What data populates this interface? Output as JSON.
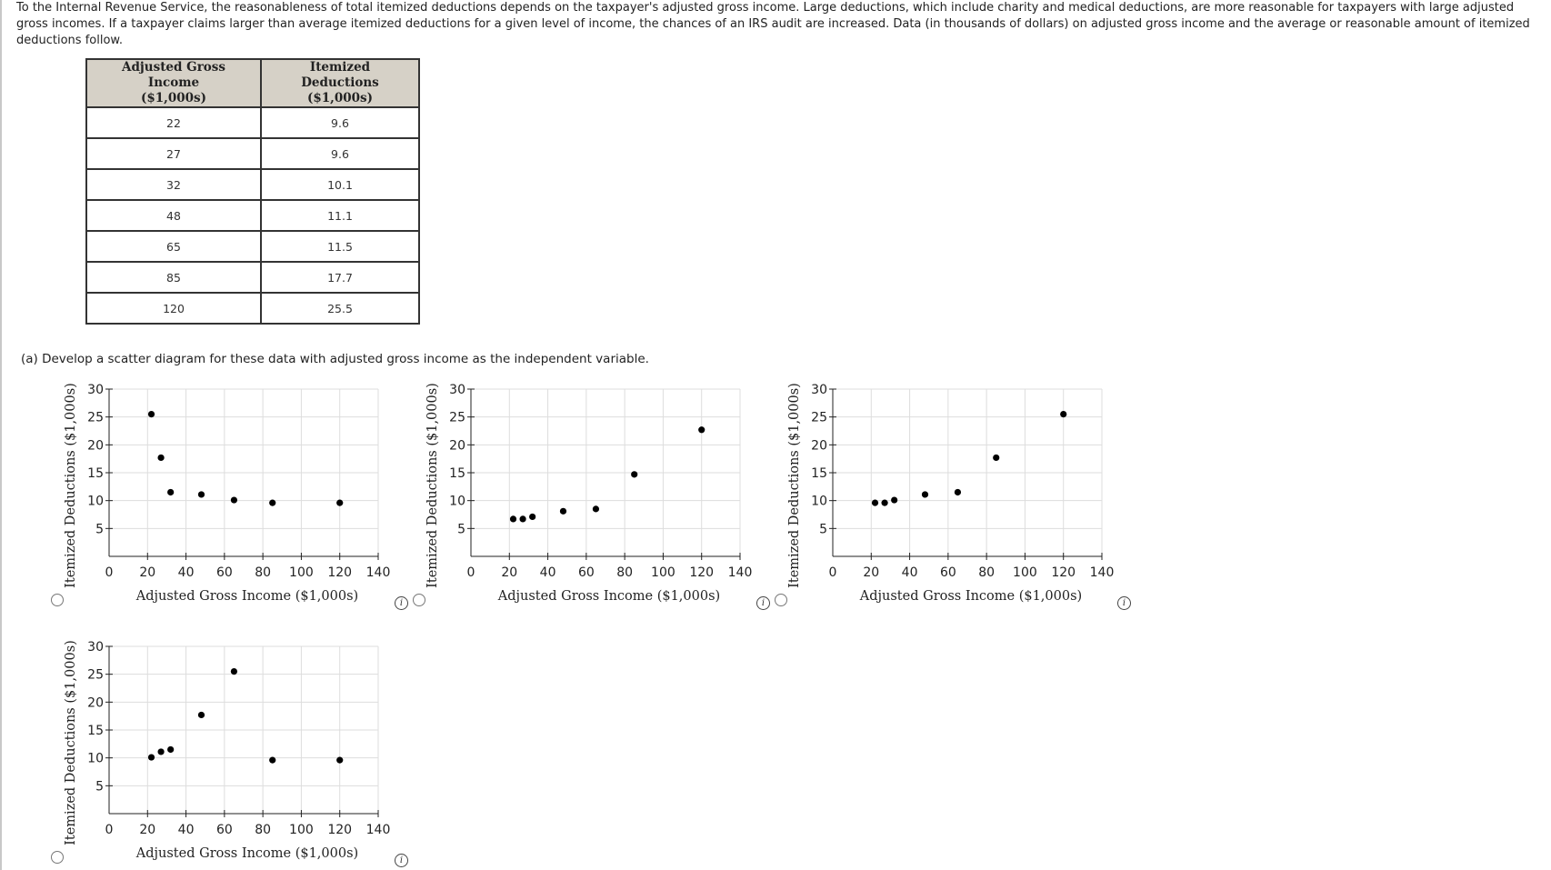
{
  "intro_text": "To the Internal Revenue Service, the reasonableness of total itemized deductions depends on the taxpayer's adjusted gross income. Large deductions, which include charity and medical deductions, are more reasonable for taxpayers with large adjusted gross incomes. If a taxpayer claims larger than average itemized deductions for a given level of income, the chances of an IRS audit are increased. Data (in thousands of dollars) on adjusted gross income and the average or reasonable amount of itemized deductions follow.",
  "table": {
    "headers": [
      {
        "line1": "Adjusted Gross Income",
        "line2": "($1,000s)"
      },
      {
        "line1": "Itemized Deductions",
        "line2": "($1,000s)"
      }
    ],
    "rows": [
      [
        "22",
        "9.6"
      ],
      [
        "27",
        "9.6"
      ],
      [
        "32",
        "10.1"
      ],
      [
        "48",
        "11.1"
      ],
      [
        "65",
        "11.5"
      ],
      [
        "85",
        "17.7"
      ],
      [
        "120",
        "25.5"
      ]
    ]
  },
  "question_a": "(a)  Develop a scatter diagram for these data with adjusted gross income as the independent variable.",
  "info_glyph": "i",
  "icons": {
    "option_radio": "radio-button",
    "info": "info-icon"
  },
  "chart_data": [
    {
      "type": "scatter",
      "xlabel": "Adjusted Gross Income ($1,000s)",
      "ylabel": "Itemized Deductions ($1,000s)",
      "xlim": [
        0,
        140
      ],
      "ylim": [
        0,
        30
      ],
      "xticks": [
        "0",
        "20",
        "40",
        "60",
        "80",
        "100",
        "120",
        "140"
      ],
      "yticks": [
        "5",
        "10",
        "15",
        "20",
        "25",
        "30"
      ],
      "grid": true,
      "points": [
        [
          22,
          25.5
        ],
        [
          27,
          17.7
        ],
        [
          32,
          11.5
        ],
        [
          48,
          11.1
        ],
        [
          65,
          10.1
        ],
        [
          85,
          9.6
        ],
        [
          120,
          9.6
        ]
      ]
    },
    {
      "type": "scatter",
      "xlabel": "Adjusted Gross Income ($1,000s)",
      "ylabel": "Itemized Deductions ($1,000s)",
      "xlim": [
        0,
        140
      ],
      "ylim": [
        0,
        30
      ],
      "xticks": [
        "0",
        "20",
        "40",
        "60",
        "80",
        "100",
        "120",
        "140"
      ],
      "yticks": [
        "5",
        "10",
        "15",
        "20",
        "25",
        "30"
      ],
      "grid": true,
      "points": [
        [
          22,
          6.7
        ],
        [
          27,
          6.7
        ],
        [
          32,
          7.1
        ],
        [
          48,
          8.1
        ],
        [
          65,
          8.5
        ],
        [
          85,
          14.7
        ],
        [
          120,
          22.7
        ]
      ]
    },
    {
      "type": "scatter",
      "xlabel": "Adjusted Gross Income ($1,000s)",
      "ylabel": "Itemized Deductions ($1,000s)",
      "xlim": [
        0,
        140
      ],
      "ylim": [
        0,
        30
      ],
      "xticks": [
        "0",
        "20",
        "40",
        "60",
        "80",
        "100",
        "120",
        "140"
      ],
      "yticks": [
        "5",
        "10",
        "15",
        "20",
        "25",
        "30"
      ],
      "grid": true,
      "points": [
        [
          22,
          9.6
        ],
        [
          27,
          9.6
        ],
        [
          32,
          10.1
        ],
        [
          48,
          11.1
        ],
        [
          65,
          11.5
        ],
        [
          85,
          17.7
        ],
        [
          120,
          25.5
        ]
      ]
    },
    {
      "type": "scatter",
      "xlabel": "Adjusted Gross Income ($1,000s)",
      "ylabel": "Itemized Deductions ($1,000s)",
      "xlim": [
        0,
        140
      ],
      "ylim": [
        0,
        30
      ],
      "xticks": [
        "0",
        "20",
        "40",
        "60",
        "80",
        "100",
        "120",
        "140"
      ],
      "yticks": [
        "5",
        "10",
        "15",
        "20",
        "25",
        "30"
      ],
      "grid": true,
      "points": [
        [
          22,
          10.1
        ],
        [
          27,
          11.1
        ],
        [
          32,
          11.5
        ],
        [
          48,
          17.7
        ],
        [
          65,
          25.5
        ],
        [
          85,
          9.6
        ],
        [
          120,
          9.6
        ]
      ]
    }
  ]
}
